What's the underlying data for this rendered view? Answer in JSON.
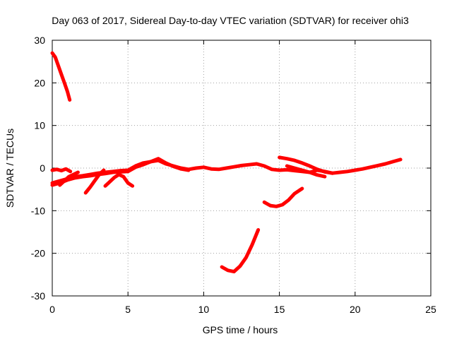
{
  "chart_data": {
    "type": "line",
    "title": "Day 063 of 2017, Sidereal Day-to-day VTEC variation (SDTVAR) for receiver ohi3",
    "xlabel": "GPS time / hours",
    "ylabel": "SDTVAR / TECUs",
    "xlim": [
      0,
      25
    ],
    "ylim": [
      -30,
      30
    ],
    "xticks": [
      0,
      5,
      10,
      15,
      20,
      25
    ],
    "yticks": [
      -30,
      -20,
      -10,
      0,
      10,
      20,
      30
    ],
    "grid": true,
    "color": "#ff0000",
    "series": [
      {
        "name": "trace-1",
        "x": [
          0.0,
          0.2,
          0.4,
          0.6,
          0.8,
          1.0,
          1.15
        ],
        "y": [
          27,
          26,
          24,
          22,
          20,
          18,
          16
        ]
      },
      {
        "name": "trace-2",
        "x": [
          0.0,
          0.3,
          0.6,
          0.9,
          1.2
        ],
        "y": [
          -0.5,
          -0.3,
          -0.6,
          -0.2,
          -0.8
        ]
      },
      {
        "name": "trace-3",
        "x": [
          0.0,
          0.5,
          1.0,
          1.5,
          2.0,
          2.5,
          3.0,
          3.5,
          4.0,
          4.5,
          5.0,
          5.5,
          6.0,
          6.5,
          7.0,
          7.5,
          8.0,
          8.5,
          9.0,
          9.5,
          10.0,
          10.5,
          11.0,
          11.5,
          12.0,
          12.5,
          13.0,
          13.5,
          14.0,
          14.5,
          15.0,
          15.5,
          16.0,
          16.5,
          17.0,
          17.5,
          18.0,
          18.5,
          19.0,
          19.5,
          20.0,
          20.5,
          21.0,
          21.5,
          22.0,
          22.5,
          23.0
        ],
        "y": [
          -3.5,
          -3.0,
          -2.5,
          -2.0,
          -1.8,
          -1.5,
          -1.2,
          -1.0,
          -0.8,
          -0.6,
          -0.5,
          0.5,
          1.2,
          1.5,
          1.8,
          1.0,
          0.5,
          0.0,
          -0.3,
          0.0,
          0.2,
          -0.2,
          -0.3,
          0.0,
          0.3,
          0.6,
          0.8,
          1.0,
          0.5,
          -0.3,
          -0.5,
          -0.4,
          -0.6,
          -0.8,
          -1.0,
          -0.5,
          -0.8,
          -1.2,
          -1.0,
          -0.8,
          -0.5,
          -0.2,
          0.2,
          0.6,
          1.0,
          1.5,
          2.0
        ]
      },
      {
        "name": "trace-4",
        "x": [
          0.0,
          0.5,
          1.0,
          1.5,
          2.0,
          2.5,
          3.0,
          3.5,
          4.0,
          4.5,
          5.0,
          5.5,
          6.0,
          6.5,
          7.0,
          7.5,
          8.0,
          8.5,
          9.0
        ],
        "y": [
          -4.0,
          -3.5,
          -2.8,
          -2.3,
          -2.0,
          -1.8,
          -1.5,
          -1.3,
          -1.0,
          -0.9,
          -0.8,
          0.2,
          0.8,
          1.5,
          2.2,
          1.2,
          0.4,
          -0.2,
          -0.5
        ]
      },
      {
        "name": "trace-5",
        "x": [
          0.5,
          0.8,
          1.1,
          1.4,
          1.7
        ],
        "y": [
          -4.0,
          -3.0,
          -2.0,
          -1.5,
          -1.0
        ]
      },
      {
        "name": "trace-6",
        "x": [
          2.2,
          2.5,
          2.8,
          3.1,
          3.4
        ],
        "y": [
          -5.8,
          -4.5,
          -3.0,
          -1.5,
          -0.5
        ]
      },
      {
        "name": "trace-7",
        "x": [
          3.5,
          3.8,
          4.1,
          4.4,
          4.7,
          5.0,
          5.3
        ],
        "y": [
          -4.2,
          -3.2,
          -2.2,
          -1.5,
          -2.0,
          -3.5,
          -4.2
        ]
      },
      {
        "name": "trace-8",
        "x": [
          14.0,
          14.4,
          14.8,
          15.2,
          15.6,
          16.0,
          16.5
        ],
        "y": [
          -8.0,
          -8.8,
          -9.0,
          -8.6,
          -7.5,
          -6.0,
          -4.8
        ]
      },
      {
        "name": "trace-9",
        "x": [
          15.0,
          15.5,
          16.0,
          16.5,
          17.0,
          17.5,
          18.0,
          18.5
        ],
        "y": [
          2.5,
          2.2,
          1.8,
          1.2,
          0.5,
          -0.3,
          -0.9,
          -1.2
        ]
      },
      {
        "name": "trace-10",
        "x": [
          15.5,
          16.0,
          16.5,
          17.0,
          17.5,
          18.0
        ],
        "y": [
          0.5,
          0.0,
          -0.5,
          -1.0,
          -1.6,
          -2.0
        ]
      },
      {
        "name": "trace-11",
        "x": [
          11.2,
          11.6,
          12.0,
          12.4,
          12.8,
          13.2,
          13.6
        ],
        "y": [
          -23.2,
          -24.0,
          -24.3,
          -23.0,
          -21.0,
          -18.0,
          -14.5
        ]
      }
    ]
  }
}
